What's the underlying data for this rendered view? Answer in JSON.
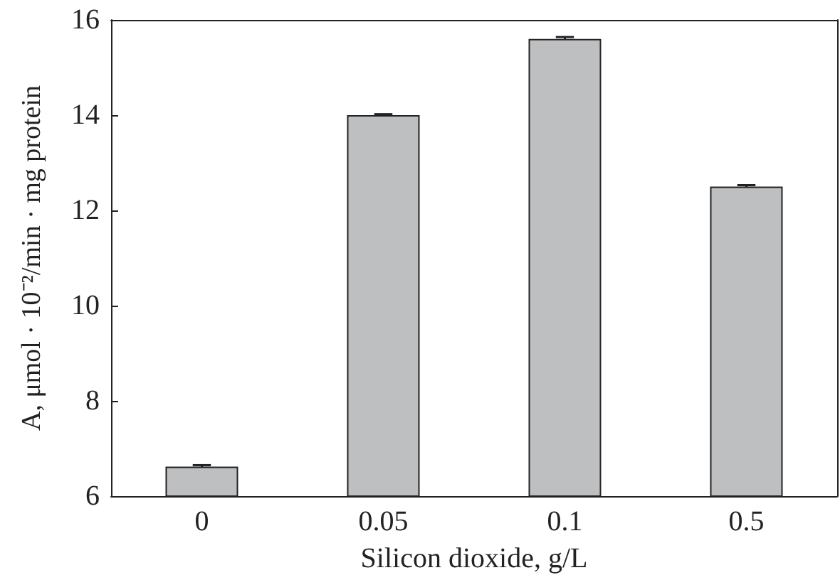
{
  "chart_data": {
    "type": "bar",
    "xlabel": "Silicon dioxide, g/L",
    "ylabel": "A, μmol · 10⁻²/min · mg protein",
    "categories": [
      "0",
      "0.05",
      "0.1",
      "0.5"
    ],
    "series": [
      {
        "color": "#bebfc1",
        "values": [
          6.62,
          14.0,
          15.6,
          12.5
        ],
        "errors": [
          0.03,
          0.02,
          0.04,
          0.03
        ]
      }
    ],
    "ylim": [
      6,
      16
    ],
    "yticks": [
      6,
      8,
      10,
      12,
      14,
      16
    ],
    "grid": false
  }
}
